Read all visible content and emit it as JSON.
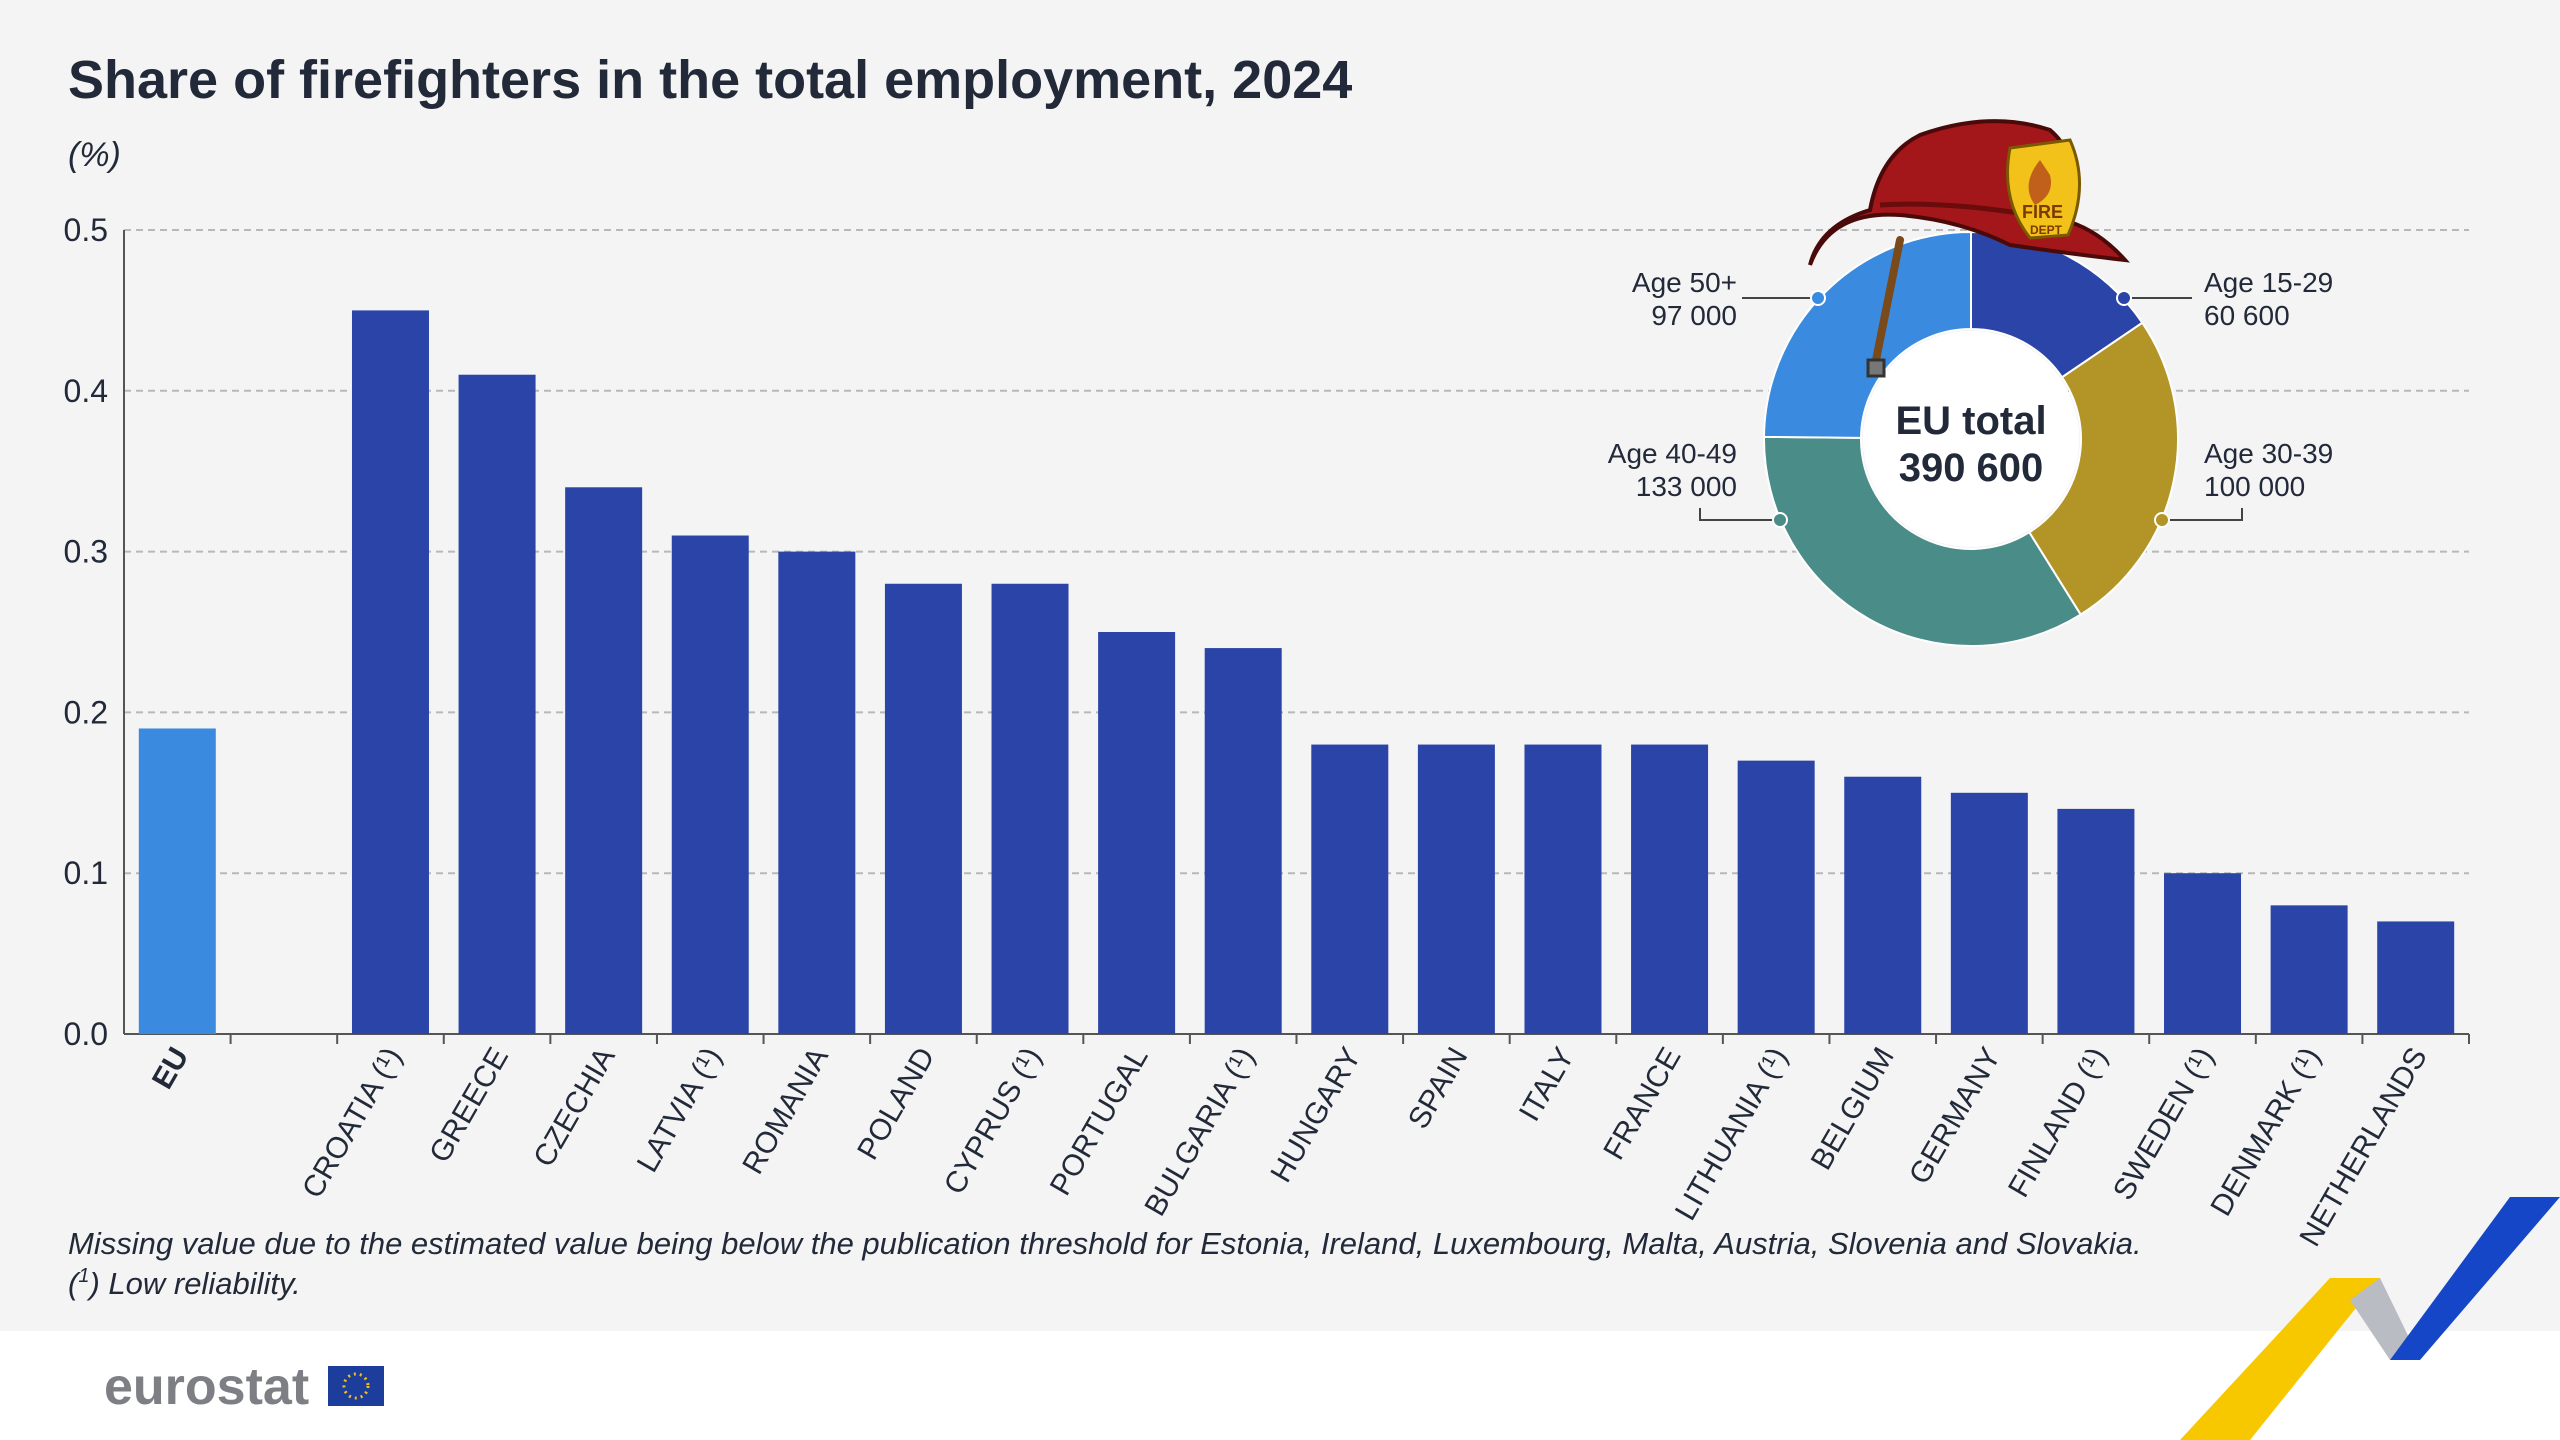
{
  "chart_data": [
    {
      "type": "bar",
      "title": "Share of firefighters in the total employment, 2024",
      "ylabel": "(%)",
      "ylim": [
        0,
        0.5
      ],
      "yticks": [
        "0.0",
        "0.1",
        "0.2",
        "0.3",
        "0.4",
        "0.5"
      ],
      "grid": true,
      "categories": [
        "EU",
        "",
        "CROATIA (¹)",
        "GREECE",
        "CZECHIA",
        "LATVIA (¹)",
        "ROMANIA",
        "POLAND",
        "CYPRUS (¹)",
        "PORTUGAL",
        "BULGARIA (¹)",
        "HUNGARY",
        "SPAIN",
        "ITALY",
        "FRANCE",
        "LITHUANIA (¹)",
        "BELGIUM",
        "GERMANY",
        "FINLAND (¹)",
        "SWEDEN (¹)",
        "DENMARK (¹)",
        "NETHERLANDS"
      ],
      "values": [
        0.19,
        null,
        0.45,
        0.41,
        0.34,
        0.31,
        0.3,
        0.28,
        0.28,
        0.25,
        0.24,
        0.18,
        0.18,
        0.18,
        0.18,
        0.17,
        0.16,
        0.15,
        0.14,
        0.1,
        0.08,
        0.07
      ],
      "colors": {
        "eu": "#3a8be0",
        "country": "#2a44a8"
      }
    },
    {
      "type": "pie",
      "center_label": [
        "EU total",
        "390 600"
      ],
      "slices": [
        {
          "label": "Age 15-29",
          "value": 60600,
          "value_label": "60 600",
          "color": "#2a44a8"
        },
        {
          "label": "Age 30-39",
          "value": 100000,
          "value_label": "100 000",
          "color": "#b39427"
        },
        {
          "label": "Age 40-49",
          "value": 133000,
          "value_label": "133 000",
          "color": "#4a8c88"
        },
        {
          "label": "Age 50+",
          "value": 97000,
          "value_label": "97 000",
          "color": "#3a8be0"
        }
      ]
    }
  ],
  "notes": {
    "missing": "Missing value due to the estimated value being below the publication threshold for Estonia, Ireland, Luxembourg, Malta, Austria, Slovenia and Slovakia.",
    "footnote_mark": "1",
    "footnote": "Low reliability."
  },
  "brand": {
    "logo": "eurostat",
    "helmet_badge": [
      "FIRE",
      "DEPT"
    ]
  }
}
